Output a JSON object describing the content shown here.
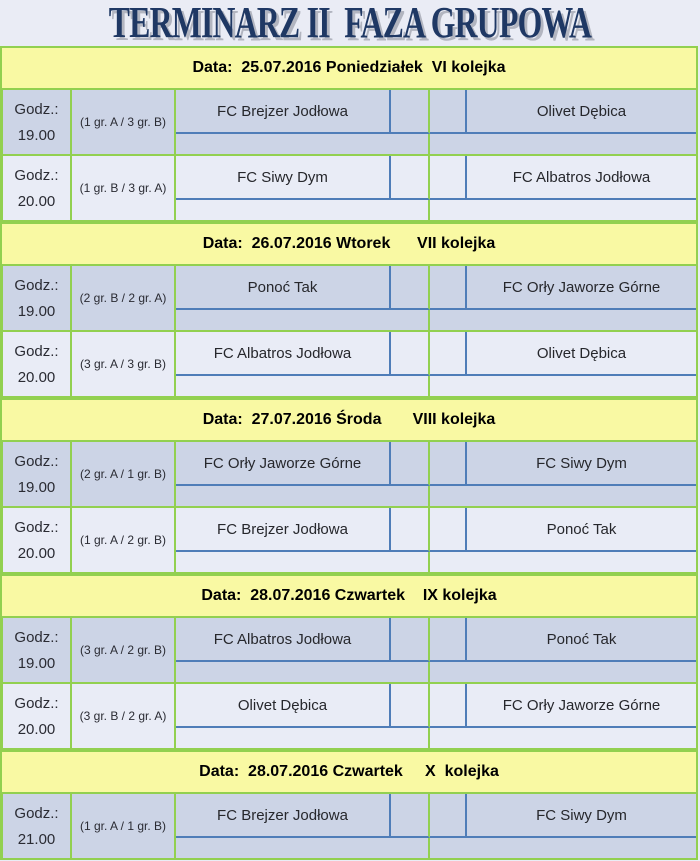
{
  "title": "TERMINARZ II  FAZA GRUPOWA",
  "colors": {
    "page_background": "#eaecf5",
    "title_text": "#1f3864",
    "title_shadow": "#b2b5c0",
    "banner_fill": "#f9f9a3",
    "grid_green": "#92d050",
    "grid_blue": "#4f7db8",
    "row_dark": "#ccd4e6",
    "row_light": "#e9ecf6",
    "body_text": "#26272c"
  },
  "sections": [
    {
      "date_label": "Data:  25.07.2016 Poniedziałek  VI kolejka",
      "matches": [
        {
          "time_label": "Godz.:",
          "time": "19.00",
          "groups": "(1 gr. A / 3 gr. B)",
          "home": "FC Brejzer Jodłowa",
          "away": "Olivet Dębica",
          "shade": "dark"
        },
        {
          "time_label": "Godz.:",
          "time": "20.00",
          "groups": "(1 gr. B / 3 gr. A)",
          "home": "FC Siwy Dym",
          "away": "FC Albatros Jodłowa",
          "shade": "light"
        }
      ]
    },
    {
      "date_label": "Data:  26.07.2016 Wtorek      VII kolejka",
      "matches": [
        {
          "time_label": "Godz.:",
          "time": "19.00",
          "groups": "(2 gr. B / 2 gr. A)",
          "home": "Ponoć Tak",
          "away": "FC Orły Jaworze Górne",
          "shade": "dark"
        },
        {
          "time_label": "Godz.:",
          "time": "20.00",
          "groups": "(3 gr. A / 3 gr. B)",
          "home": "FC Albatros Jodłowa",
          "away": "Olivet Dębica",
          "shade": "light"
        }
      ]
    },
    {
      "date_label": "Data:  27.07.2016 Środa       VIII kolejka",
      "matches": [
        {
          "time_label": "Godz.:",
          "time": "19.00",
          "groups": "(2 gr. A / 1 gr. B)",
          "home": "FC Orły Jaworze Górne",
          "away": "FC Siwy Dym",
          "shade": "dark"
        },
        {
          "time_label": "Godz.:",
          "time": "20.00",
          "groups": "(1 gr. A / 2 gr. B)",
          "home": "FC Brejzer Jodłowa",
          "away": "Ponoć Tak",
          "shade": "light"
        }
      ]
    },
    {
      "date_label": "Data:  28.07.2016 Czwartek    IX kolejka",
      "matches": [
        {
          "time_label": "Godz.:",
          "time": "19.00",
          "groups": "(3 gr. A / 2 gr. B)",
          "home": "FC Albatros Jodłowa",
          "away": "Ponoć Tak",
          "shade": "dark"
        },
        {
          "time_label": "Godz.:",
          "time": "20.00",
          "groups": "(3 gr. B / 2 gr. A)",
          "home": "Olivet Dębica",
          "away": "FC Orły Jaworze Górne",
          "shade": "light"
        }
      ]
    },
    {
      "date_label": "Data:  28.07.2016 Czwartek     X  kolejka",
      "matches": [
        {
          "time_label": "Godz.:",
          "time": "21.00",
          "groups": "(1 gr. A / 1 gr. B)",
          "home": "FC Brejzer Jodłowa",
          "away": "FC Siwy Dym",
          "shade": "dark"
        }
      ]
    }
  ]
}
